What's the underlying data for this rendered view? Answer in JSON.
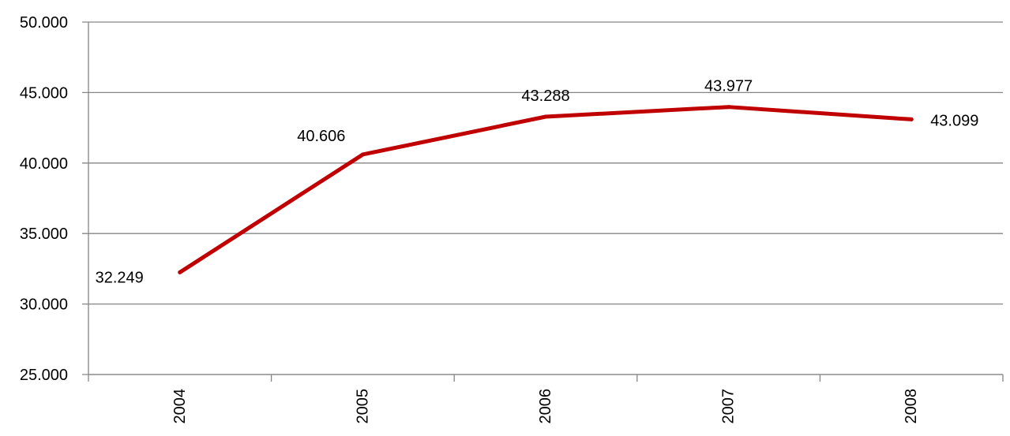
{
  "chart_data": {
    "type": "line",
    "categories": [
      "2004",
      "2005",
      "2006",
      "2007",
      "2008"
    ],
    "series": [
      {
        "values": [
          32249,
          40606,
          43288,
          43977,
          43099
        ],
        "value_labels": [
          "32.249",
          "40.606",
          "43.288",
          "43.977",
          "43.099"
        ],
        "color": "#C00000"
      }
    ],
    "y_ticks": [
      25000,
      30000,
      35000,
      40000,
      45000,
      50000
    ],
    "y_tick_labels": [
      "25.000",
      "30.000",
      "35.000",
      "40.000",
      "45.000",
      "50.000"
    ],
    "ylim": [
      25000,
      50000
    ],
    "title": "",
    "xlabel": "",
    "ylabel": "",
    "grid": true,
    "legend": "none",
    "gridline_color": "#868686"
  }
}
